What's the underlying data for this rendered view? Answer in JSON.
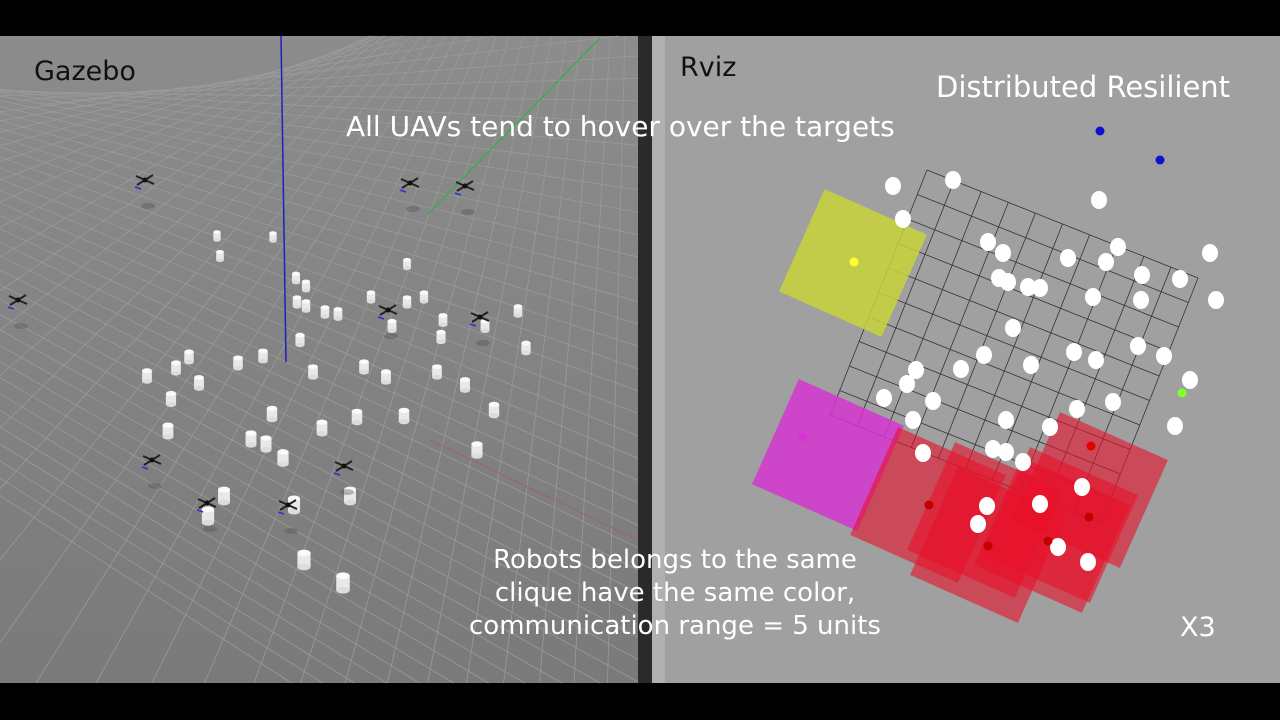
{
  "left_panel": {
    "title": "Gazebo"
  },
  "right_panel": {
    "title": "Rviz",
    "method": "Distributed Resilient",
    "speed": "X3"
  },
  "captions": {
    "top": "All UAVs tend to hover over the targets",
    "bottom_lines": [
      "Robots belongs to the same",
      "clique have the same color,",
      "communication range = 5 units"
    ]
  },
  "colors": {
    "gazebo_bg": "#858585",
    "rviz_bg": "#a0a0a0",
    "clique_yellow": "#c8d33a",
    "clique_magenta": "#d535d0",
    "clique_red": "#e8102a",
    "robot_green": "#7fff30",
    "robot_blue": "#1010d0"
  }
}
